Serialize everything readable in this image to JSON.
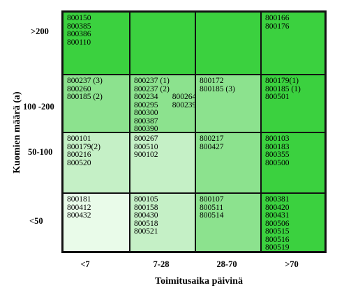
{
  "chart_data": {
    "type": "table",
    "xlabel": "Toimitusaika päivinä",
    "ylabel": "Kuomien määrä (a)",
    "x_categories": [
      "<7",
      "7-28",
      "28-70",
      ">70"
    ],
    "y_categories": [
      ">200",
      "100 -200",
      "50-100",
      "<50"
    ],
    "colors": {
      "dark": "#3bd13f",
      "medium": "#8ce28e",
      "light": "#c5f0c6",
      "lightest": "#e9fbe9"
    },
    "rows": [
      [
        {
          "shade": "dark",
          "items": [
            "800150",
            "800385",
            "800386",
            "800110"
          ]
        },
        {
          "shade": "dark",
          "items": []
        },
        {
          "shade": "dark",
          "items": []
        },
        {
          "shade": "dark",
          "items": [
            "800166",
            "800176"
          ]
        }
      ],
      [
        {
          "shade": "medium",
          "items": [
            "800237 (3)",
            "800260",
            "800185 (2)"
          ]
        },
        {
          "shade": "medium",
          "items": [
            "800237 (1)",
            "800237 (2)",
            "800234",
            "800295",
            "800300",
            "800387",
            "800390"
          ],
          "items_col2": [
            "800264",
            "800239"
          ]
        },
        {
          "shade": "medium",
          "items": [
            "800172",
            "800185 (3)"
          ]
        },
        {
          "shade": "dark",
          "items": [
            "800179(1)",
            "800185 (1)",
            "800501"
          ]
        }
      ],
      [
        {
          "shade": "light",
          "items": [
            "800101",
            "800179(2)",
            "800216",
            "800520"
          ]
        },
        {
          "shade": "light",
          "items": [
            "800267",
            "800510",
            "900102"
          ]
        },
        {
          "shade": "medium",
          "items": [
            "800217",
            "800427"
          ]
        },
        {
          "shade": "dark",
          "items": [
            "800103",
            "800183",
            "800355",
            "800500"
          ]
        }
      ],
      [
        {
          "shade": "lightest",
          "items": [
            "800181",
            "800412",
            "800432"
          ]
        },
        {
          "shade": "light",
          "items": [
            "800105",
            "800158",
            "800430",
            "800518",
            "800521"
          ]
        },
        {
          "shade": "medium",
          "items": [
            "800107",
            "800511",
            "800514"
          ]
        },
        {
          "shade": "dark",
          "items": [
            "800381",
            "800420",
            "800431",
            "800506",
            "800515",
            "800516",
            "800519"
          ]
        }
      ]
    ]
  }
}
